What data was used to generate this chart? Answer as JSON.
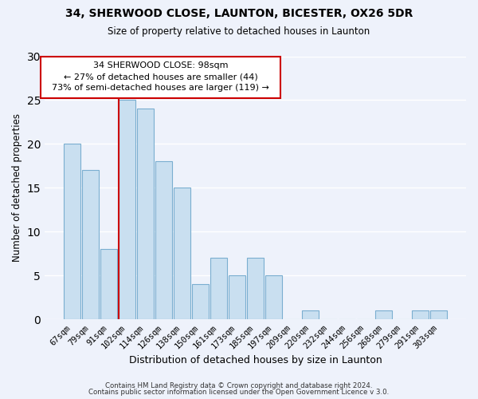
{
  "title_line1": "34, SHERWOOD CLOSE, LAUNTON, BICESTER, OX26 5DR",
  "title_line2": "Size of property relative to detached houses in Launton",
  "xlabel": "Distribution of detached houses by size in Launton",
  "ylabel": "Number of detached properties",
  "categories": [
    "67sqm",
    "79sqm",
    "91sqm",
    "102sqm",
    "114sqm",
    "126sqm",
    "138sqm",
    "150sqm",
    "161sqm",
    "173sqm",
    "185sqm",
    "197sqm",
    "209sqm",
    "220sqm",
    "232sqm",
    "244sqm",
    "256sqm",
    "268sqm",
    "279sqm",
    "291sqm",
    "303sqm"
  ],
  "values": [
    20,
    17,
    8,
    25,
    24,
    18,
    15,
    4,
    7,
    5,
    7,
    5,
    0,
    1,
    0,
    0,
    0,
    1,
    0,
    1,
    1
  ],
  "bar_color": "#c9dff0",
  "highlight_color": "#CC0000",
  "highlight_index": 3,
  "annotation_line1": "34 SHERWOOD CLOSE: 98sqm",
  "annotation_line2": "← 27% of detached houses are smaller (44)",
  "annotation_line3": "73% of semi-detached houses are larger (119) →",
  "ylim": [
    0,
    30
  ],
  "yticks": [
    0,
    5,
    10,
    15,
    20,
    25,
    30
  ],
  "footer_line1": "Contains HM Land Registry data © Crown copyright and database right 2024.",
  "footer_line2": "Contains public sector information licensed under the Open Government Licence v 3.0.",
  "background_color": "#eef2fb",
  "grid_color": "#ffffff",
  "bar_edgecolor": "#7aaed0"
}
